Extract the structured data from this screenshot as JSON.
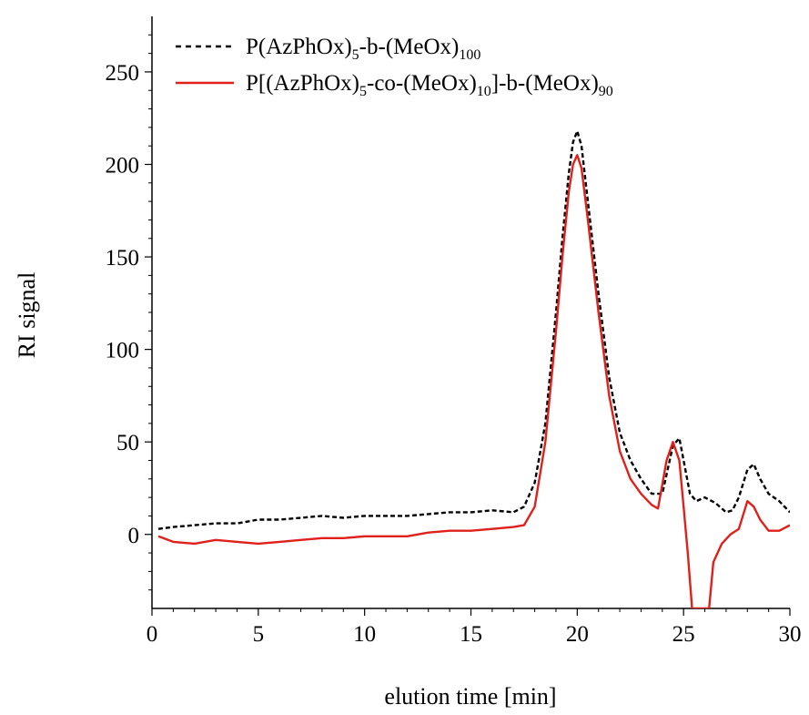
{
  "chart_data": {
    "type": "line",
    "title": "",
    "xlabel": "elution time [min]",
    "ylabel": "RI signal",
    "xlim": [
      0,
      30
    ],
    "ylim": [
      -40,
      280
    ],
    "xticks": [
      0,
      5,
      10,
      15,
      20,
      25,
      30
    ],
    "yticks": [
      0,
      50,
      100,
      150,
      200,
      250
    ],
    "grid": false,
    "legend_position": "top-left",
    "series": [
      {
        "name": "P(AzPhOx)5-b-(MeOx)100",
        "legend": {
          "main": "P(AzPhOx)",
          "sub1": "5",
          "mid": "-b-(MeOx)",
          "sub2": "100",
          "tail": ""
        },
        "color": "#000000",
        "style": "dashed",
        "x": [
          0.3,
          1,
          2,
          3,
          4,
          5,
          6,
          7,
          8,
          9,
          10,
          11,
          12,
          13,
          14,
          15,
          16,
          17,
          17.5,
          18,
          18.5,
          19,
          19.3,
          19.6,
          19.8,
          20,
          20.2,
          20.5,
          21,
          21.5,
          22,
          22.5,
          23,
          23.5,
          24,
          24.5,
          24.8,
          25,
          25.3,
          25.6,
          26,
          26.5,
          27,
          27.3,
          27.6,
          28,
          28.3,
          28.6,
          29,
          29.5,
          30
        ],
        "y": [
          3,
          4,
          5,
          6,
          6,
          8,
          8,
          9,
          10,
          9,
          10,
          10,
          10,
          11,
          12,
          12,
          13,
          12,
          15,
          28,
          60,
          120,
          160,
          195,
          212,
          218,
          210,
          180,
          130,
          85,
          55,
          40,
          30,
          22,
          22,
          48,
          52,
          40,
          22,
          18,
          20,
          17,
          12,
          13,
          20,
          35,
          38,
          30,
          22,
          18,
          12
        ]
      },
      {
        "name": "P[(AzPhOx)5-co-(MeOx)10]-b-(MeOx)90",
        "legend": {
          "main": "P[(AzPhOx)",
          "sub1": "5",
          "mid": "-co-(MeOx)",
          "sub2": "10",
          "tail": "]-b-(MeOx)",
          "sub3": "90"
        },
        "color": "#e0201b",
        "style": "solid",
        "x": [
          0.3,
          1,
          2,
          3,
          4,
          5,
          6,
          7,
          8,
          9,
          10,
          11,
          12,
          13,
          14,
          15,
          16,
          17,
          17.5,
          18,
          18.5,
          19,
          19.3,
          19.6,
          19.8,
          20,
          20.2,
          20.5,
          21,
          21.5,
          22,
          22.5,
          23,
          23.5,
          23.8,
          24.2,
          24.5,
          24.8,
          25,
          25.2,
          25.4,
          25.6,
          26,
          26.2,
          26.4,
          26.8,
          27.2,
          27.6,
          28,
          28.3,
          28.6,
          29,
          29.5,
          30
        ],
        "y": [
          -1,
          -4,
          -5,
          -3,
          -4,
          -5,
          -4,
          -3,
          -2,
          -2,
          -1,
          -1,
          -1,
          1,
          2,
          2,
          3,
          4,
          5,
          15,
          50,
          110,
          150,
          185,
          200,
          205,
          198,
          170,
          120,
          75,
          45,
          30,
          22,
          16,
          14,
          40,
          50,
          40,
          15,
          -10,
          -40,
          -40,
          -40,
          -40,
          -15,
          -5,
          0,
          3,
          18,
          15,
          8,
          2,
          2,
          5
        ]
      }
    ]
  }
}
